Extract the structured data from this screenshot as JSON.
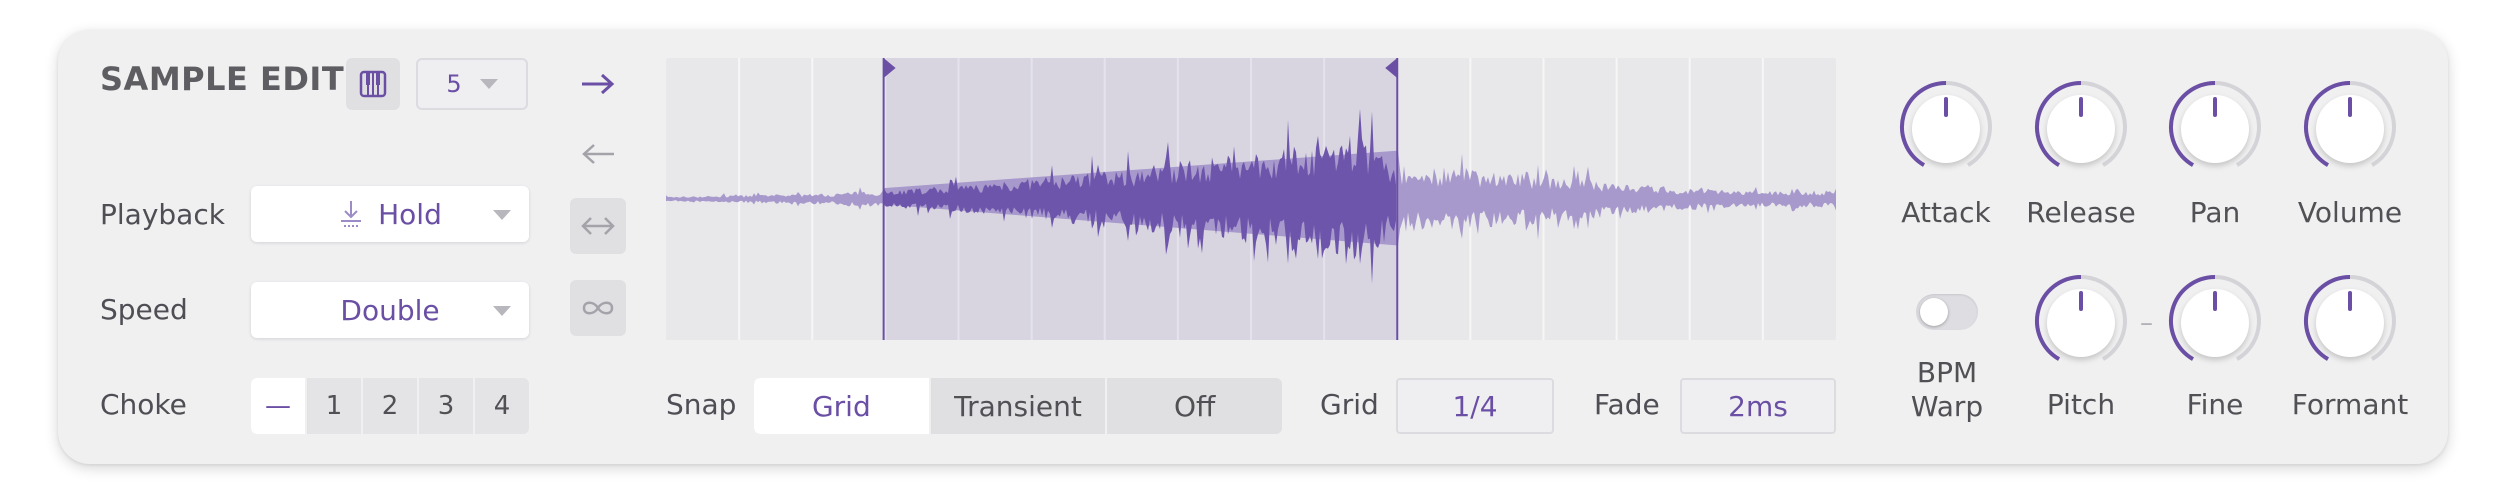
{
  "header": {
    "title": "SAMPLE EDIT",
    "keyboard_icon": "piano-keyboard-icon",
    "select_value": "5"
  },
  "playback": {
    "label": "Playback",
    "value": "Hold",
    "icon": "hold-download-icon"
  },
  "speed": {
    "label": "Speed",
    "value": "Double"
  },
  "choke": {
    "label": "Choke",
    "options": [
      "—",
      "1",
      "2",
      "3",
      "4"
    ],
    "selected": "—"
  },
  "direction_buttons": [
    {
      "icon": "arrow-right-icon",
      "active": true
    },
    {
      "icon": "arrow-left-icon",
      "active": false
    },
    {
      "icon": "arrow-left-right-icon",
      "active": false
    },
    {
      "icon": "infinity-icon",
      "active": false
    }
  ],
  "waveform": {
    "region_start": 0.186,
    "region_end": 0.625,
    "grid_divisions": 16
  },
  "snap": {
    "label": "Snap",
    "options": [
      "Grid",
      "Transient",
      "Off"
    ],
    "selected": "Grid"
  },
  "grid": {
    "label": "Grid",
    "value": "1/4"
  },
  "fade": {
    "label": "Fade",
    "value": "2ms"
  },
  "knobs_top": [
    {
      "label": "Attack"
    },
    {
      "label": "Release"
    },
    {
      "label": "Pan"
    },
    {
      "label": "Volume"
    }
  ],
  "bpm_warp": {
    "label_line1": "BPM",
    "label_line2": "Warp",
    "on": false
  },
  "knobs_bottom": [
    {
      "label": "Pitch"
    },
    {
      "label": "Fine"
    },
    {
      "label": "Formant"
    }
  ],
  "link_dash": "–",
  "colors": {
    "accent": "#6a4fa5",
    "panel": "#f0f0f1",
    "wave_dark": "#6d55ab",
    "wave_light": "#a899cc"
  }
}
